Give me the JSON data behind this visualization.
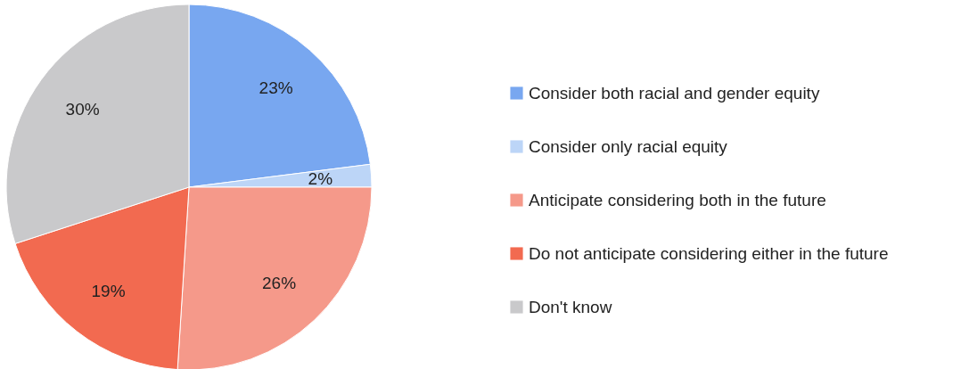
{
  "chart_data": {
    "type": "pie",
    "categories": [
      "Consider both racial and gender equity",
      "Consider only racial equity",
      "Anticipate considering both in the future",
      "Do not anticipate considering either in the future",
      "Don't know"
    ],
    "values": [
      23,
      2,
      26,
      19,
      30
    ],
    "value_labels": [
      "23%",
      "2%",
      "26%",
      "19%",
      "30%"
    ],
    "colors": [
      "#78a7f0",
      "#bcd5f7",
      "#f5998a",
      "#f26a50",
      "#c9c9cb"
    ],
    "legend": "right"
  }
}
